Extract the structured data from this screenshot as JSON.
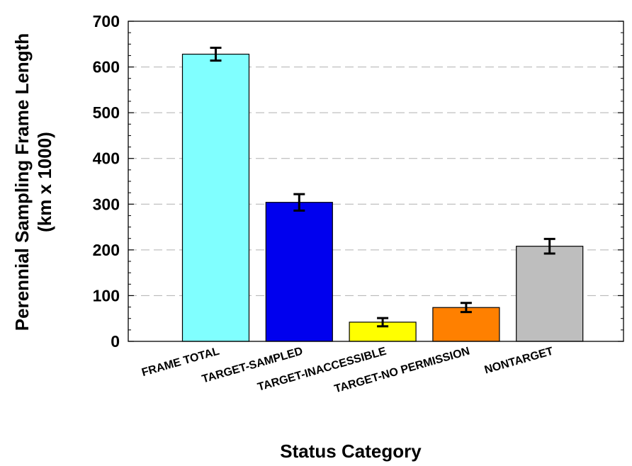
{
  "chart_data": {
    "type": "bar",
    "title": "",
    "xlabel": "Status Category",
    "ylabel": [
      "Perennial Sampling Frame Length",
      "(km x 1000)"
    ],
    "ylim": [
      0,
      700
    ],
    "yticks": [
      0,
      100,
      200,
      300,
      400,
      500,
      600,
      700
    ],
    "grid": "horizontal dashed",
    "categories": [
      "FRAME TOTAL",
      "TARGET-SAMPLED",
      "TARGET-INACCESSIBLE",
      "TARGET-NO PERMISSION",
      "NONTARGET"
    ],
    "values": [
      628,
      304,
      42,
      74,
      208
    ],
    "error": [
      14,
      18,
      9,
      10,
      16
    ],
    "colors": [
      "#80ffff",
      "#0000ee",
      "#ffff00",
      "#ff8000",
      "#bebebe"
    ]
  }
}
